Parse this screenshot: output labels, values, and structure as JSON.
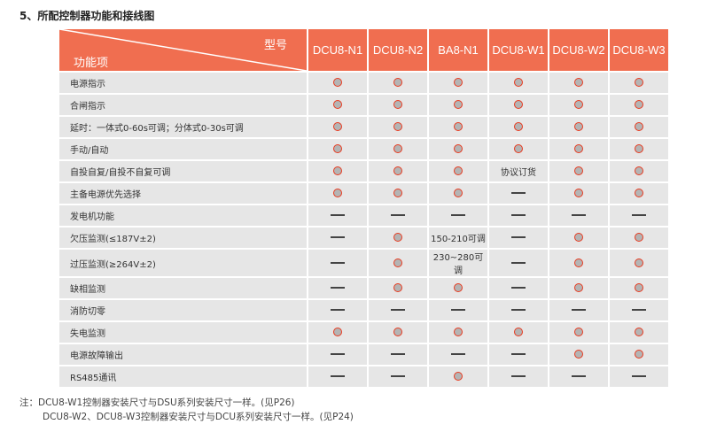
{
  "title": "5、所配控制器功能和接线图",
  "header": {
    "model_label": "型号",
    "function_label": "功能项",
    "models": [
      "DCU8-N1",
      "DCU8-N2",
      "BA8-N1",
      "DCU8-W1",
      "DCU8-W2",
      "DCU8-W3"
    ]
  },
  "legend_symbols": {
    "o": "circle-supported",
    "-": "dash-not-supported"
  },
  "colors": {
    "header": "#f06e50",
    "cell": "#e6e6e6",
    "circle_border": "#e8391e"
  },
  "rows": [
    {
      "function": "电源指示",
      "values": [
        "o",
        "o",
        "o",
        "o",
        "o",
        "o"
      ]
    },
    {
      "function": "合闸指示",
      "values": [
        "o",
        "o",
        "o",
        "o",
        "o",
        "o"
      ]
    },
    {
      "function": "延时：一体式0-60s可调；分体式0-30s可调",
      "values": [
        "o",
        "o",
        "o",
        "o",
        "o",
        "o"
      ]
    },
    {
      "function": "手动/自动",
      "values": [
        "o",
        "o",
        "o",
        "o",
        "o",
        "o"
      ]
    },
    {
      "function": "自投自复/自投不自复可调",
      "values": [
        "o",
        "o",
        "o",
        "协议订货",
        "o",
        "o"
      ]
    },
    {
      "function": "主备电源优先选择",
      "values": [
        "o",
        "o",
        "o",
        "-",
        "o",
        "o"
      ]
    },
    {
      "function": "发电机功能",
      "values": [
        "-",
        "-",
        "-",
        "-",
        "-",
        "-"
      ]
    },
    {
      "function": "欠压监测(≤187V±2)",
      "values": [
        "-",
        "o",
        "150-210可调",
        "-",
        "o",
        "o"
      ]
    },
    {
      "function": "过压监测(≥264V±2)",
      "values": [
        "-",
        "o",
        "230~280可调",
        "-",
        "o",
        "o"
      ]
    },
    {
      "function": "缺相监测",
      "values": [
        "-",
        "o",
        "o",
        "-",
        "o",
        "o"
      ]
    },
    {
      "function": "消防切零",
      "values": [
        "-",
        "-",
        "-",
        "-",
        "-",
        "-"
      ]
    },
    {
      "function": "失电监测",
      "values": [
        "o",
        "o",
        "o",
        "o",
        "o",
        "o"
      ]
    },
    {
      "function": "电源故障输出",
      "values": [
        "-",
        "-",
        "-",
        "-",
        "o",
        "o"
      ]
    },
    {
      "function": "RS485通讯",
      "values": [
        "-",
        "-",
        "o",
        "-",
        "-",
        "-"
      ]
    }
  ],
  "notes": [
    "注：DCU8-W1控制器安装尺寸与DSU系列安装尺寸一样。(见P26)",
    "DCU8-W2、DCU8-W3控制器安装尺寸与DCU系列安装尺寸一样。(见P24)"
  ]
}
